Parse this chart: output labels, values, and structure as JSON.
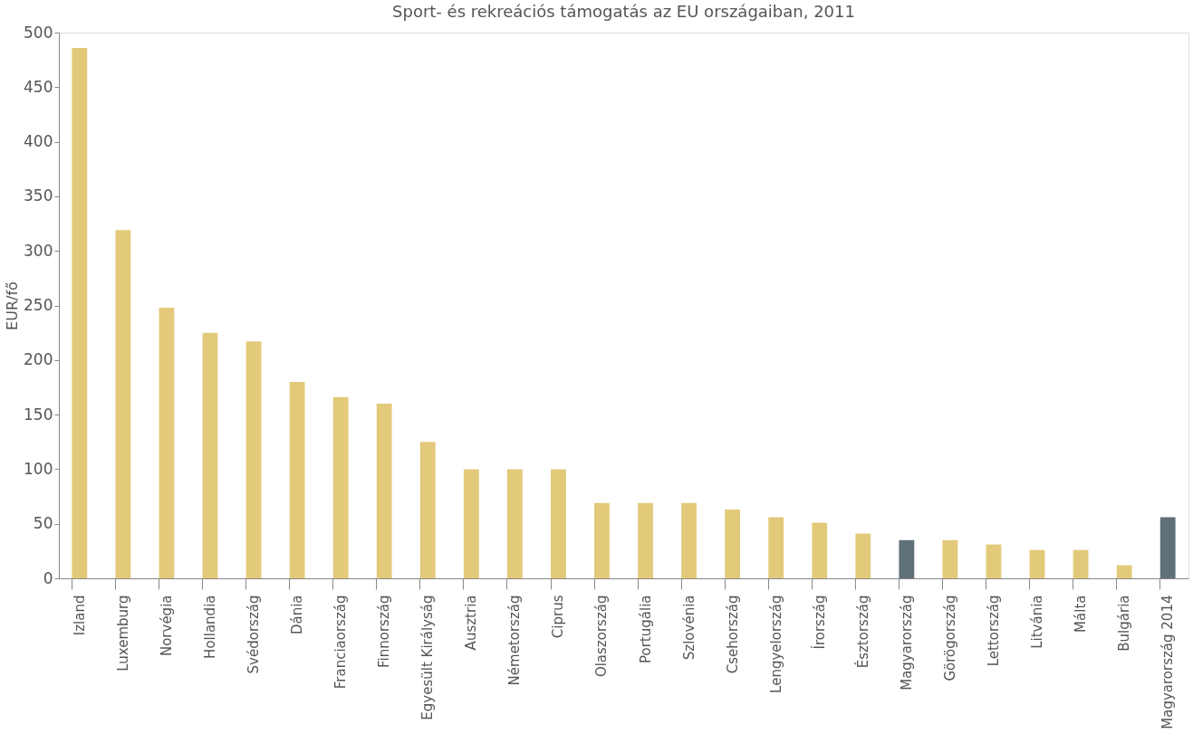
{
  "chart_data": {
    "type": "bar",
    "title": "Sport- és rekreációs támogatás az EU országaiban, 2011",
    "ylabel": "EUR/fő",
    "categories": [
      "Izland",
      "Luxemburg",
      "Norvégia",
      "Hollandia",
      "Svédország",
      "Dánia",
      "Franciaország",
      "Finnország",
      "Egyesült Királyság",
      "Ausztria",
      "Németország",
      "Ciprus",
      "Olaszország",
      "Portugália",
      "Szlovénia",
      "Csehország",
      "Lengyelország",
      "Írország",
      "Észtország",
      "Magyarország",
      "Görögország",
      "Lettország",
      "Litvánia",
      "Málta",
      "Bulgária",
      "Magyarország 2014"
    ],
    "values": [
      486,
      319,
      248,
      225,
      217,
      180,
      166,
      160,
      125,
      100,
      100,
      100,
      69,
      69,
      69,
      63,
      56,
      51,
      41,
      35,
      35,
      31,
      26,
      26,
      12,
      56
    ],
    "colors": [
      "#e3c97a",
      "#e3c97a",
      "#e3c97a",
      "#e3c97a",
      "#e3c97a",
      "#e3c97a",
      "#e3c97a",
      "#e3c97a",
      "#e3c97a",
      "#e3c97a",
      "#e3c97a",
      "#e3c97a",
      "#e3c97a",
      "#e3c97a",
      "#e3c97a",
      "#e3c97a",
      "#e3c97a",
      "#e3c97a",
      "#e3c97a",
      "#5f7078",
      "#e3c97a",
      "#e3c97a",
      "#e3c97a",
      "#e3c97a",
      "#e3c97a",
      "#5f7078"
    ],
    "ylim": [
      0,
      500
    ],
    "yticks": [
      0,
      50,
      100,
      150,
      200,
      250,
      300,
      350,
      400,
      450,
      500
    ],
    "grid": false,
    "legend": false
  }
}
